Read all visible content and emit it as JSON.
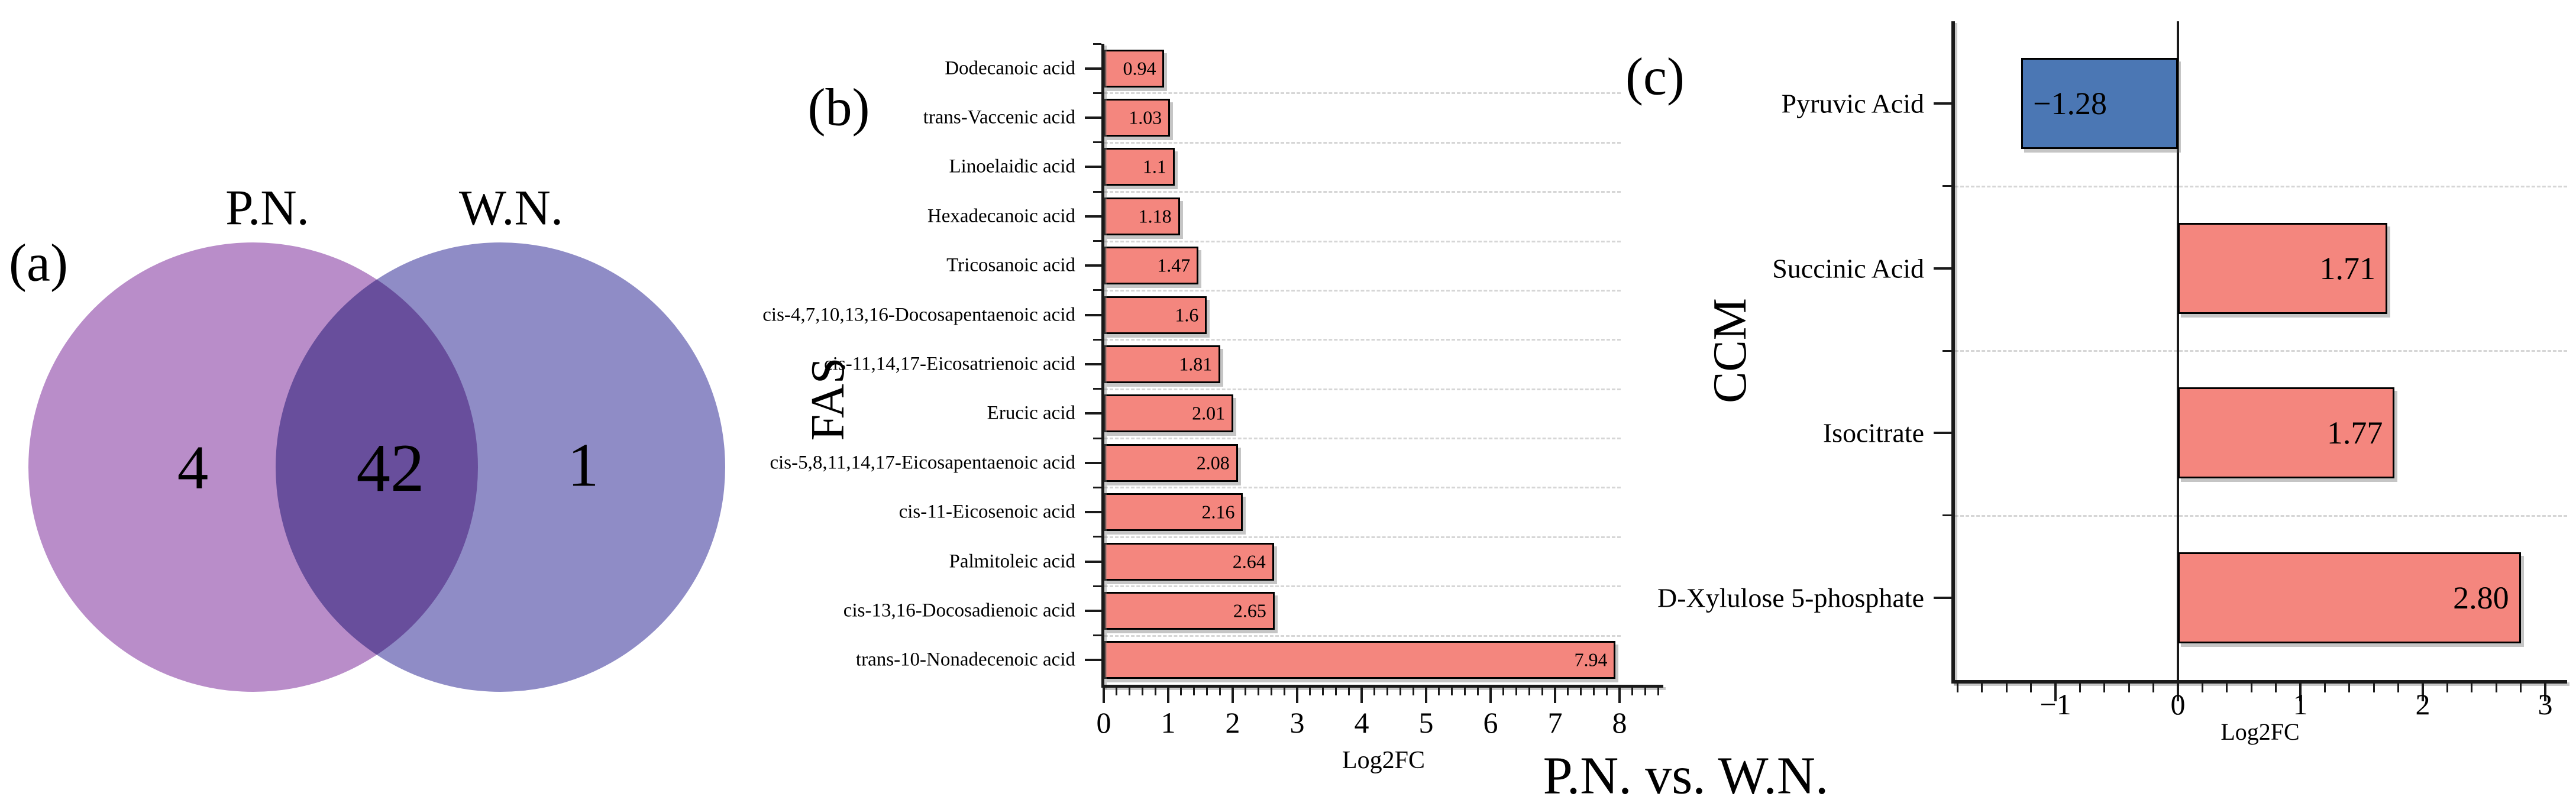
{
  "figure": {
    "caption_bottom": "P.N. vs. W.N."
  },
  "panel_a": {
    "label": "(a)",
    "left_set": {
      "name": "P.N.",
      "count": "4",
      "color": "#B98DC9"
    },
    "right_set": {
      "name": "W.N.",
      "count": "1",
      "color": "#8F8CC6"
    },
    "overlap": {
      "count": "42",
      "color": "#6C51A2"
    }
  },
  "chart_data": [
    {
      "id": "fas",
      "type": "bar",
      "orientation": "horizontal",
      "panel_label": "(b)",
      "group_label": "FAS",
      "xlabel": "Log2FC",
      "categories": [
        "Dodecanoic acid",
        "trans-Vaccenic acid",
        "Linoelaidic acid",
        "Hexadecanoic acid",
        "Tricosanoic acid",
        "cis-4,7,10,13,16-Docosapentaenoic acid",
        "cis-11,14,17-Eicosatrienoic acid",
        "Erucic acid",
        "cis-5,8,11,14,17-Eicosapentaenoic acid",
        "cis-11-Eicosenoic acid",
        "Palmitoleic acid",
        "cis-13,16-Docosadienoic acid",
        "trans-10-Nonadecenoic acid"
      ],
      "values": [
        0.94,
        1.03,
        1.1,
        1.18,
        1.47,
        1.6,
        1.81,
        2.01,
        2.08,
        2.16,
        2.64,
        2.65,
        7.94
      ],
      "value_labels": [
        "0.94",
        "1.03",
        "1.1",
        "1.18",
        "1.47",
        "1.6",
        "1.81",
        "2.01",
        "2.08",
        "2.16",
        "2.64",
        "2.65",
        "7.94"
      ],
      "bar_color": "#F4867E",
      "bar_border_color": "#000000",
      "xlim": [
        0,
        8.6
      ],
      "xticks": [
        "0",
        "1",
        "2",
        "3",
        "4",
        "5",
        "6",
        "7",
        "8"
      ],
      "xtick_values": [
        0,
        1,
        2,
        3,
        4,
        5,
        6,
        7,
        8
      ],
      "minor_tick_step": 0.2,
      "grid": "dashed horizontal separators between categories",
      "legend": "none"
    },
    {
      "id": "ccm",
      "type": "bar",
      "orientation": "horizontal",
      "panel_label": "(c)",
      "group_label": "CCM",
      "xlabel": "Log2FC",
      "categories": [
        "Pyruvic Acid",
        "Succinic Acid",
        "Isocitrate",
        "D-Xylulose 5-phosphate"
      ],
      "values": [
        -1.28,
        1.71,
        1.77,
        2.8
      ],
      "value_labels": [
        "−1.28",
        "1.71",
        "1.77",
        "2.80"
      ],
      "positive_color": "#F4867E",
      "negative_color": "#4B77B4",
      "bar_border_color": "#000000",
      "xlim": [
        -1.84,
        3.18
      ],
      "xticks": [
        "−1",
        "0",
        "1",
        "2",
        "3"
      ],
      "xtick_values": [
        -1,
        0,
        1,
        2,
        3
      ],
      "minor_tick_step": 0.2,
      "zero_line": true,
      "grid": "dashed horizontal separators between categories",
      "legend": "none"
    }
  ]
}
